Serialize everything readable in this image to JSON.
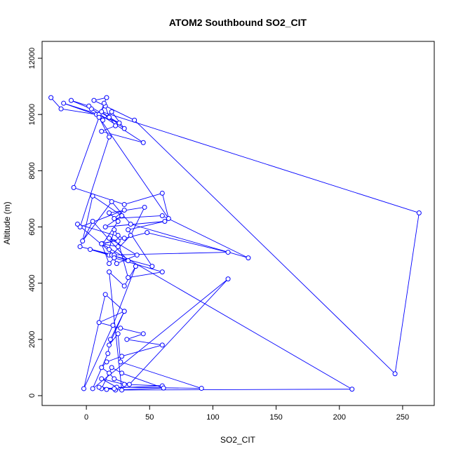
{
  "chart_data": {
    "type": "line",
    "title": "ATOM2 Southbound SO2_CIT",
    "xlabel": "SO2_CIT",
    "ylabel": "Altitude (m)",
    "xlim": [
      -35,
      275
    ],
    "ylim": [
      -350,
      12600
    ],
    "x_ticks": [
      "0",
      "50",
      "100",
      "150",
      "200",
      "250"
    ],
    "y_ticks": [
      "0",
      "2000",
      "4000",
      "6000",
      "8000",
      "10000",
      "12000"
    ],
    "grid": false,
    "series_color": "#0000ff",
    "x": [
      -28,
      -20,
      8,
      15,
      18,
      23,
      12,
      45,
      4,
      -12,
      2,
      26,
      -18,
      10,
      13,
      20,
      30,
      12,
      263,
      244,
      38,
      6,
      16,
      14,
      -10,
      30,
      60,
      65,
      10,
      18,
      -5,
      30,
      22,
      60,
      128,
      35,
      20,
      -3,
      5,
      28,
      15,
      62,
      33,
      52,
      3,
      18,
      112,
      48,
      13,
      25,
      18,
      46,
      35,
      20,
      33,
      5,
      -5,
      22,
      -7,
      30,
      12,
      25,
      25,
      22,
      18,
      24,
      40,
      18,
      25,
      33,
      60,
      22,
      18,
      12,
      210,
      28,
      18,
      30,
      39,
      21,
      -2,
      15,
      30,
      10,
      27,
      45,
      32,
      60,
      28,
      16,
      12,
      18,
      22,
      34,
      112,
      5,
      17,
      19,
      30,
      18,
      25,
      27,
      91,
      24,
      12,
      30,
      60,
      12,
      20,
      28,
      61,
      23,
      10,
      22,
      16
    ],
    "y": [
      10600,
      10200,
      10000,
      10300,
      9900,
      9600,
      9400,
      9000,
      10200,
      10500,
      10300,
      9700,
      10400,
      10000,
      9800,
      10100,
      9500,
      10100,
      6500,
      780,
      9800,
      10500,
      10600,
      10400,
      7400,
      6800,
      7200,
      6300,
      9900,
      9200,
      6000,
      6600,
      6300,
      6400,
      4900,
      6100,
      6900,
      5500,
      7100,
      6400,
      6000,
      6200,
      5900,
      4600,
      5200,
      5000,
      5100,
      5800,
      5400,
      6200,
      6500,
      6700,
      5700,
      5000,
      4800,
      6200,
      5300,
      5000,
      6100,
      5600,
      5400,
      5300,
      5700,
      5900,
      5200,
      4700,
      5000,
      5600,
      5500,
      4200,
      4400,
      4900,
      4700,
      5400,
      230,
      200,
      4400,
      3900,
      4600,
      2500,
      250,
      3600,
      3000,
      2600,
      2400,
      2200,
      2000,
      1800,
      1400,
      1200,
      1000,
      800,
      600,
      400,
      4150,
      250,
      1500,
      2000,
      3000,
      1800,
      2200,
      1200,
      260,
      300,
      600,
      400,
      350,
      250,
      1000,
      800,
      270,
      200,
      300,
      250,
      220
    ]
  }
}
